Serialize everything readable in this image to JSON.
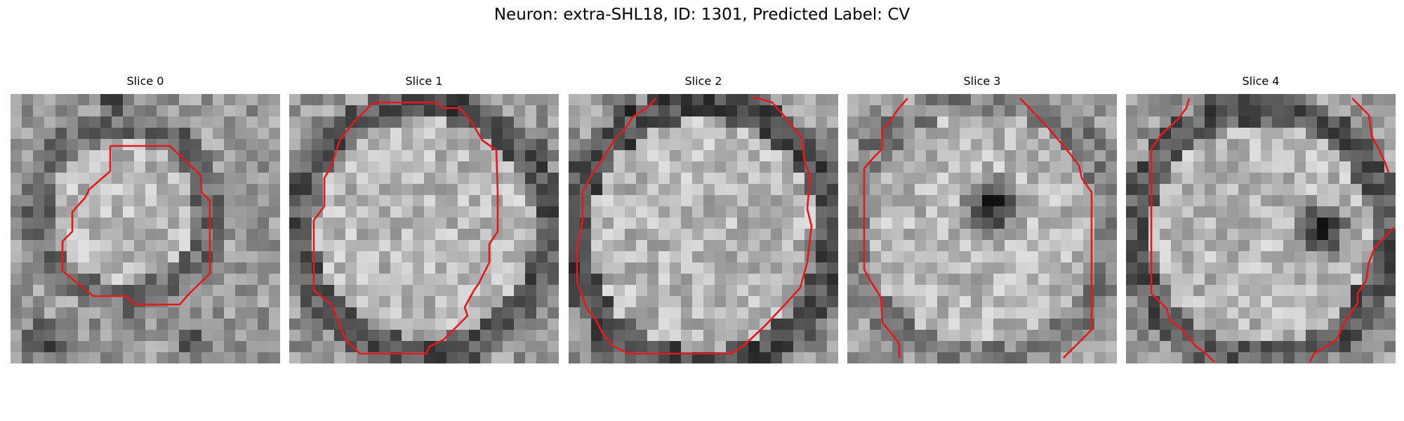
{
  "figure": {
    "title": "Neuron: extra-SHL18, ID: 1301, Predicted Label: CV"
  },
  "panels": [
    {
      "title": "Slice 0"
    },
    {
      "title": "Slice 1"
    },
    {
      "title": "Slice 2"
    },
    {
      "title": "Slice 3"
    },
    {
      "title": "Slice 4"
    }
  ],
  "style": {
    "contour_color": "#e31a1c",
    "image_colormap": "gray"
  }
}
